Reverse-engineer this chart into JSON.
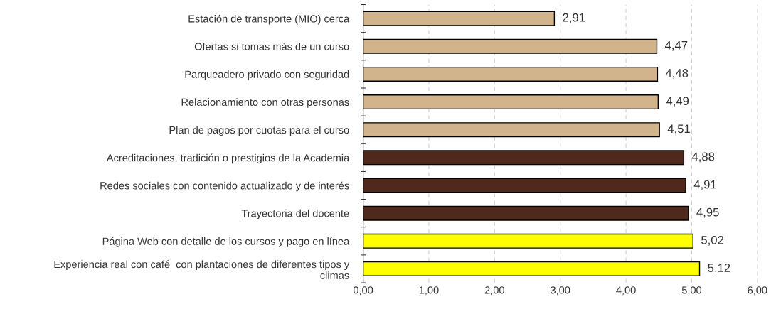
{
  "chart_data": {
    "type": "bar",
    "orientation": "horizontal",
    "categories": [
      "Estación de transporte (MIO) cerca",
      "Ofertas si tomas más de un curso",
      "Parqueadero privado con seguridad",
      "Relacionamiento con otras personas",
      "Plan de pagos por cuotas para el curso",
      "Acreditaciones, tradición o prestigios de la Academia",
      "Redes sociales con contenido actualizado y de interés",
      "Trayectoria del docente",
      "Página Web con detalle de los cursos y pago en línea",
      "Experiencia real con café  con plantaciones de diferentes tipos y\nclimas"
    ],
    "values": [
      2.91,
      4.47,
      4.48,
      4.49,
      4.51,
      4.88,
      4.91,
      4.95,
      5.02,
      5.12
    ],
    "colors": [
      "#d2b48c",
      "#d2b48c",
      "#d2b48c",
      "#d2b48c",
      "#d2b48c",
      "#4f2a1c",
      "#4f2a1c",
      "#4f2a1c",
      "#ffff00",
      "#ffff00"
    ],
    "value_labels": [
      "2,91",
      "4,47",
      "4,48",
      "4,49",
      "4,51",
      "4,88",
      "4,91",
      "4,95",
      "5,02",
      "5,12"
    ],
    "xlim": [
      0,
      6
    ],
    "xticks": [
      {
        "value": 0,
        "label": "0,00"
      },
      {
        "value": 1,
        "label": "1,00"
      },
      {
        "value": 2,
        "label": "2,00"
      },
      {
        "value": 3,
        "label": "3,00"
      },
      {
        "value": 4,
        "label": "4,00"
      },
      {
        "value": 5,
        "label": "5,00"
      },
      {
        "value": 6,
        "label": "6,00"
      }
    ],
    "grid": "x"
  }
}
